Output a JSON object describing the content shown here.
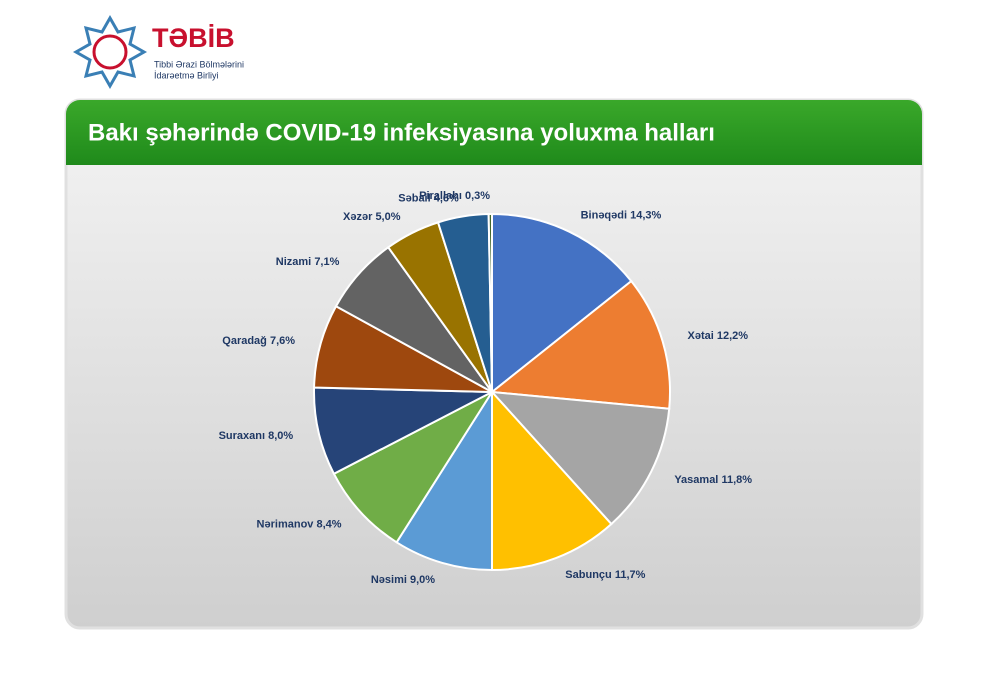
{
  "logo": {
    "name": "TƏBİB",
    "subtitle": [
      "Tibbi Ərazi Bölmələrini",
      "İdarəetmə Birliyi"
    ]
  },
  "chart_data": {
    "type": "pie",
    "title": "Bakı şəhərində COVID-19 infeksiyasına yoluxma halları",
    "categories": [
      "Binəqədi",
      "Xətai",
      "Yasamal",
      "Sabunçu",
      "Nəsimi",
      "Nərimanov",
      "Suraxanı",
      "Qaradağ",
      "Nizami",
      "Xəzər",
      "Səbail",
      "Pirallahı"
    ],
    "values": [
      14.3,
      12.2,
      11.8,
      11.7,
      9.0,
      8.4,
      8.0,
      7.6,
      7.1,
      5.0,
      4.6,
      0.3
    ],
    "value_labels": [
      "14,3%",
      "12,2%",
      "11,8%",
      "11,7%",
      "9,0%",
      "8,4%",
      "8,0%",
      "7,6%",
      "7,1%",
      "5,0%",
      "4,6%",
      "0,3%"
    ],
    "colors": [
      "#4472c4",
      "#ed7d31",
      "#a5a5a5",
      "#ffc000",
      "#5b9bd5",
      "#70ad47",
      "#264478",
      "#9e480e",
      "#636363",
      "#997300",
      "#255e91",
      "#43682b"
    ]
  }
}
